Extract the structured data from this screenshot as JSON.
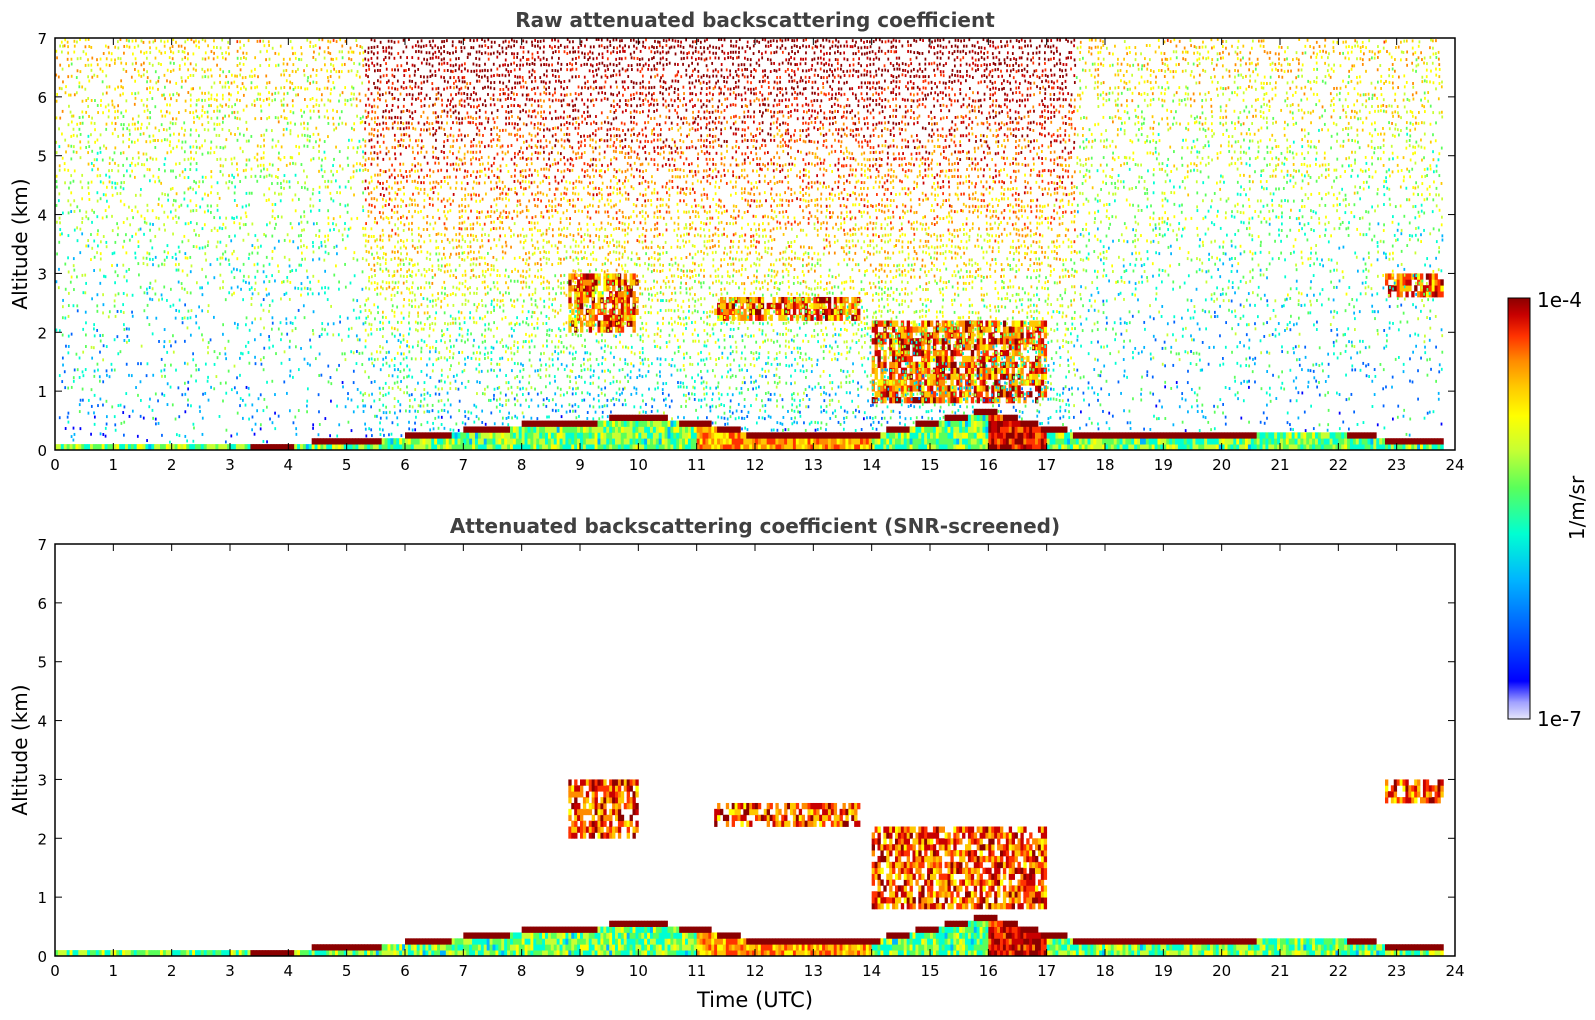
{
  "chart_data": [
    {
      "type": "heatmap",
      "title": "Raw attenuated backscattering coefficient",
      "xlabel": "",
      "ylabel": "Altitude (km)",
      "xlim": [
        0,
        24
      ],
      "ylim": [
        0,
        7
      ],
      "xticks": [
        "0",
        "1",
        "2",
        "3",
        "4",
        "5",
        "6",
        "7",
        "8",
        "9",
        "10",
        "11",
        "12",
        "13",
        "14",
        "15",
        "16",
        "17",
        "18",
        "19",
        "20",
        "21",
        "22",
        "23",
        "24"
      ],
      "yticks": [
        "0",
        "1",
        "2",
        "3",
        "4",
        "5",
        "6",
        "7"
      ],
      "features": {
        "boundary_layer_top_km": [
          [
            0,
            0.15
          ],
          [
            2,
            0.15
          ],
          [
            4,
            0.12
          ],
          [
            5,
            0.2
          ],
          [
            6,
            0.25
          ],
          [
            7,
            0.35
          ],
          [
            8,
            0.45
          ],
          [
            9,
            0.5
          ],
          [
            10,
            0.6
          ],
          [
            11,
            0.5
          ],
          [
            12,
            0.3
          ],
          [
            13,
            0.3
          ],
          [
            14,
            0.3
          ],
          [
            15,
            0.5
          ],
          [
            16,
            0.7
          ],
          [
            17,
            0.4
          ],
          [
            18,
            0.25
          ],
          [
            19,
            0.25
          ],
          [
            20,
            0.3
          ],
          [
            21,
            0.35
          ],
          [
            22,
            0.35
          ],
          [
            23,
            0.2
          ],
          [
            23.8,
            0.2
          ]
        ],
        "cloud_layers": [
          {
            "t0": 8.8,
            "t1": 10.0,
            "base_km": 2.0,
            "top_km": 3.0
          },
          {
            "t0": 11.3,
            "t1": 13.8,
            "base_km": 2.2,
            "top_km": 2.6
          },
          {
            "t0": 14.0,
            "t1": 17.0,
            "base_km": 0.8,
            "top_km": 2.2
          },
          {
            "t0": 22.8,
            "t1": 23.8,
            "base_km": 2.6,
            "top_km": 3.0
          }
        ],
        "noise_above_km": 0.5
      }
    },
    {
      "type": "heatmap",
      "title": "Attenuated backscattering coefficient (SNR-screened)",
      "xlabel": "Time (UTC)",
      "ylabel": "Altitude (km)",
      "xlim": [
        0,
        24
      ],
      "ylim": [
        0,
        7
      ],
      "xticks": [
        "0",
        "1",
        "2",
        "3",
        "4",
        "5",
        "6",
        "7",
        "8",
        "9",
        "10",
        "11",
        "12",
        "13",
        "14",
        "15",
        "16",
        "17",
        "18",
        "19",
        "20",
        "21",
        "22",
        "23",
        "24"
      ],
      "yticks": [
        "0",
        "1",
        "2",
        "3",
        "4",
        "5",
        "6",
        "7"
      ],
      "features": {
        "screened": true,
        "cloud_layers": [
          {
            "t0": 8.8,
            "t1": 10.0,
            "base_km": 2.0,
            "top_km": 3.0
          },
          {
            "t0": 11.3,
            "t1": 13.8,
            "base_km": 2.2,
            "top_km": 2.6
          },
          {
            "t0": 14.0,
            "t1": 17.0,
            "base_km": 0.8,
            "top_km": 2.2
          },
          {
            "t0": 22.8,
            "t1": 23.8,
            "base_km": 2.6,
            "top_km": 3.0
          }
        ]
      }
    }
  ],
  "colorbar": {
    "label": "1/m/sr",
    "max_label": "1e-4",
    "min_label": "1e-7",
    "colors": [
      "#e6e6fa",
      "#a0a0ff",
      "#0000ff",
      "#0064ff",
      "#00b4ff",
      "#00ffd2",
      "#5aff5a",
      "#c8ff32",
      "#ffff00",
      "#ffc800",
      "#ff8c00",
      "#ff3200",
      "#c80000",
      "#8b0000"
    ]
  }
}
